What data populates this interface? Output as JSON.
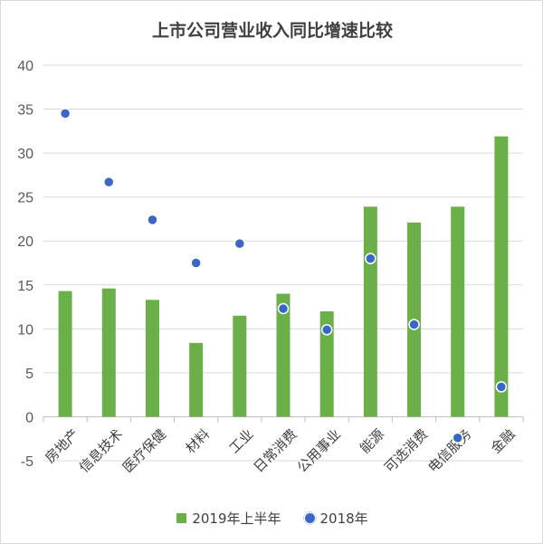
{
  "chart_data": {
    "type": "bar",
    "title": "上市公司营业收入同比增速比较",
    "categories": [
      "房地产",
      "信息技术",
      "医疗保健",
      "材料",
      "工业",
      "日常消费",
      "公用事业",
      "能源",
      "可选消费",
      "电信服务",
      "金融"
    ],
    "series": [
      {
        "name": "2019年上半年",
        "kind": "bar",
        "color": "#6aaf47",
        "values": [
          14.3,
          14.6,
          13.3,
          8.4,
          11.5,
          14.0,
          12.0,
          23.9,
          22.1,
          23.9,
          31.9
        ]
      },
      {
        "name": "2018年",
        "kind": "scatter",
        "color": "#3a66c4",
        "values": [
          34.5,
          26.7,
          22.4,
          17.5,
          19.7,
          12.3,
          9.9,
          18.0,
          10.5,
          -2.4,
          3.4
        ]
      }
    ],
    "ylim": [
      -5,
      40
    ],
    "yticks": [
      -5,
      0,
      5,
      10,
      15,
      20,
      25,
      30,
      35,
      40
    ],
    "grid": true,
    "legend_position": "bottom"
  }
}
